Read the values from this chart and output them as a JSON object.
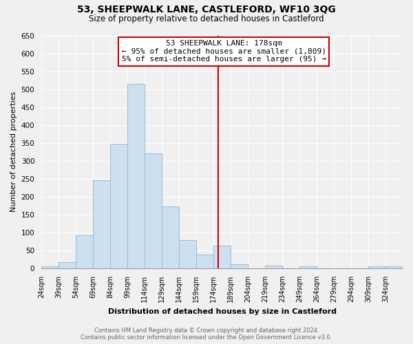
{
  "title": "53, SHEEPWALK LANE, CASTLEFORD, WF10 3QG",
  "subtitle": "Size of property relative to detached houses in Castleford",
  "xlabel": "Distribution of detached houses by size in Castleford",
  "ylabel": "Number of detached properties",
  "bar_color": "#cde0f0",
  "bar_edge_color": "#9abdd6",
  "bin_labels": [
    "24sqm",
    "39sqm",
    "54sqm",
    "69sqm",
    "84sqm",
    "99sqm",
    "114sqm",
    "129sqm",
    "144sqm",
    "159sqm",
    "174sqm",
    "189sqm",
    "204sqm",
    "219sqm",
    "234sqm",
    "249sqm",
    "264sqm",
    "279sqm",
    "294sqm",
    "309sqm",
    "324sqm"
  ],
  "bar_heights": [
    5,
    18,
    93,
    245,
    348,
    515,
    320,
    173,
    78,
    38,
    63,
    12,
    0,
    8,
    0,
    5,
    0,
    0,
    0,
    5,
    5
  ],
  "bin_edges": [
    24,
    39,
    54,
    69,
    84,
    99,
    114,
    129,
    144,
    159,
    174,
    189,
    204,
    219,
    234,
    249,
    264,
    279,
    294,
    309,
    324,
    339
  ],
  "ylim": [
    0,
    650
  ],
  "yticks": [
    0,
    50,
    100,
    150,
    200,
    250,
    300,
    350,
    400,
    450,
    500,
    550,
    600,
    650
  ],
  "vline_x": 178,
  "vline_color": "#cc0000",
  "annotation_title": "53 SHEEPWALK LANE: 178sqm",
  "annotation_line1": "← 95% of detached houses are smaller (1,809)",
  "annotation_line2": "5% of semi-detached houses are larger (95) →",
  "annotation_box_color": "#ffffff",
  "annotation_box_edge": "#cc0000",
  "footer_line1": "Contains HM Land Registry data © Crown copyright and database right 2024.",
  "footer_line2": "Contains public sector information licensed under the Open Government Licence v3.0.",
  "background_color": "#f0f0f0",
  "plot_bg_color": "#f0f0f0",
  "grid_color": "#ffffff"
}
